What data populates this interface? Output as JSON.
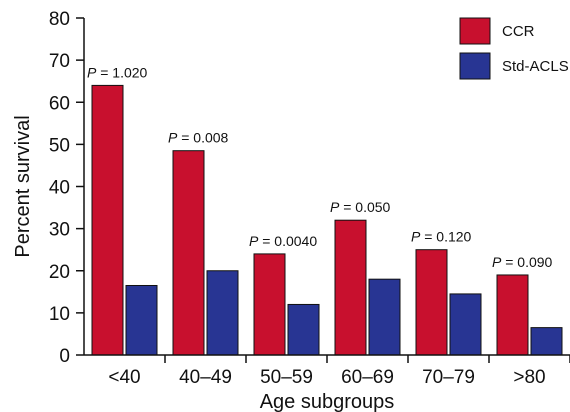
{
  "chart_data": {
    "type": "bar",
    "xlabel": "Age subgroups",
    "ylabel": "Percent survival",
    "ylim": [
      0,
      80
    ],
    "yticks": [
      0,
      10,
      20,
      30,
      40,
      50,
      60,
      70,
      80
    ],
    "categories": [
      "<40",
      "40–49",
      "50–59",
      "60–69",
      "70–79",
      ">80"
    ],
    "series": [
      {
        "name": "CCR",
        "color": "#c8102e",
        "values": [
          64,
          48.5,
          24,
          32,
          25,
          19
        ]
      },
      {
        "name": "Std-ACLS",
        "color": "#283593",
        "values": [
          16.5,
          20,
          12,
          18,
          14.5,
          6.5
        ]
      }
    ],
    "p_values": [
      "= 1.020",
      "= 0.008",
      "= 0.0040",
      "= 0.050",
      "= 0.120",
      "= 0.090"
    ],
    "p_symbol": "P",
    "legend_position": "top-right",
    "grid": false
  }
}
